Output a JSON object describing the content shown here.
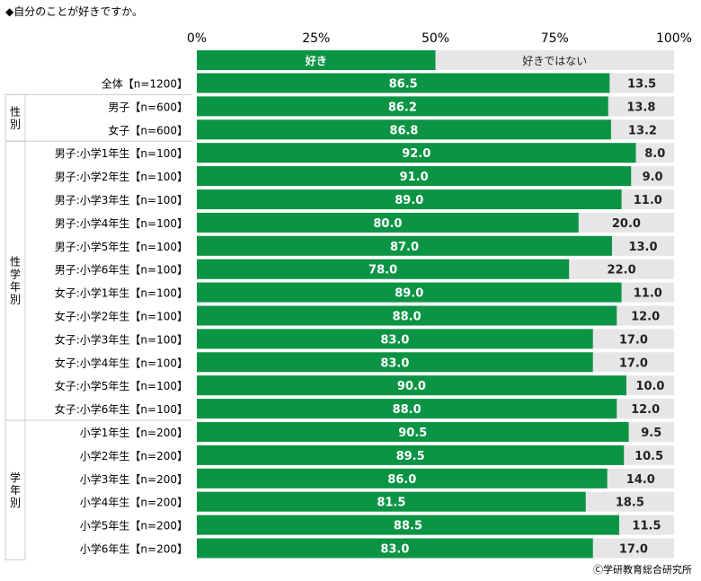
{
  "chart_data": {
    "type": "bar",
    "orientation": "horizontal",
    "stacked": true,
    "title": "◆自分のことが好きですか。",
    "xlim": [
      0,
      100
    ],
    "x_ticks": [
      "0%",
      "25%",
      "50%",
      "75%",
      "100%"
    ],
    "legend": [
      "好き",
      "好きではない"
    ],
    "colors": {
      "like": "#0b9444",
      "dislike": "#e6e6e6",
      "divider": "#cccccc"
    },
    "groups": [
      {
        "label": "",
        "first": 0,
        "last": 0
      },
      {
        "label": "性別",
        "first": 1,
        "last": 2
      },
      {
        "label": "性学年別",
        "first": 3,
        "last": 14
      },
      {
        "label": "学年別",
        "first": 15,
        "last": 20
      }
    ],
    "categories": [
      "全体【n=1200】",
      "男子【n=600】",
      "女子【n=600】",
      "男子:小学1年生【n=100】",
      "男子:小学2年生【n=100】",
      "男子:小学3年生【n=100】",
      "男子:小学4年生【n=100】",
      "男子:小学5年生【n=100】",
      "男子:小学6年生【n=100】",
      "女子:小学1年生【n=100】",
      "女子:小学2年生【n=100】",
      "女子:小学3年生【n=100】",
      "女子:小学4年生【n=100】",
      "女子:小学5年生【n=100】",
      "女子:小学6年生【n=100】",
      "小学1年生【n=200】",
      "小学2年生【n=200】",
      "小学3年生【n=200】",
      "小学4年生【n=200】",
      "小学5年生【n=200】",
      "小学6年生【n=200】"
    ],
    "series": [
      {
        "name": "好き",
        "values": [
          86.5,
          86.2,
          86.8,
          92.0,
          91.0,
          89.0,
          80.0,
          87.0,
          78.0,
          89.0,
          88.0,
          83.0,
          83.0,
          90.0,
          88.0,
          90.5,
          89.5,
          86.0,
          81.5,
          88.5,
          83.0
        ],
        "labels": [
          "86.5",
          "86.2",
          "86.8",
          "92.0",
          "91.0",
          "89.0",
          "80.0",
          "87.0",
          "78.0",
          "89.0",
          "88.0",
          "83.0",
          "83.0",
          "90.0",
          "88.0",
          "90.5",
          "89.5",
          "86.0",
          "81.5",
          "88.5",
          "83.0"
        ]
      },
      {
        "name": "好きではない",
        "values": [
          13.5,
          13.8,
          13.2,
          8.0,
          9.0,
          11.0,
          20.0,
          13.0,
          22.0,
          11.0,
          12.0,
          17.0,
          17.0,
          10.0,
          12.0,
          9.5,
          10.5,
          14.0,
          18.5,
          11.5,
          17.0
        ],
        "labels": [
          "13.5",
          "13.8",
          "13.2",
          "8.0",
          "9.0",
          "11.0",
          "20.0",
          "13.0",
          "22.0",
          "11.0",
          "12.0",
          "17.0",
          "17.0",
          "10.0",
          "12.0",
          "9.5",
          "10.5",
          "14.0",
          "18.5",
          "11.5",
          "17.0"
        ]
      }
    ],
    "credit": "Ⓒ学研教育総合研究所"
  }
}
